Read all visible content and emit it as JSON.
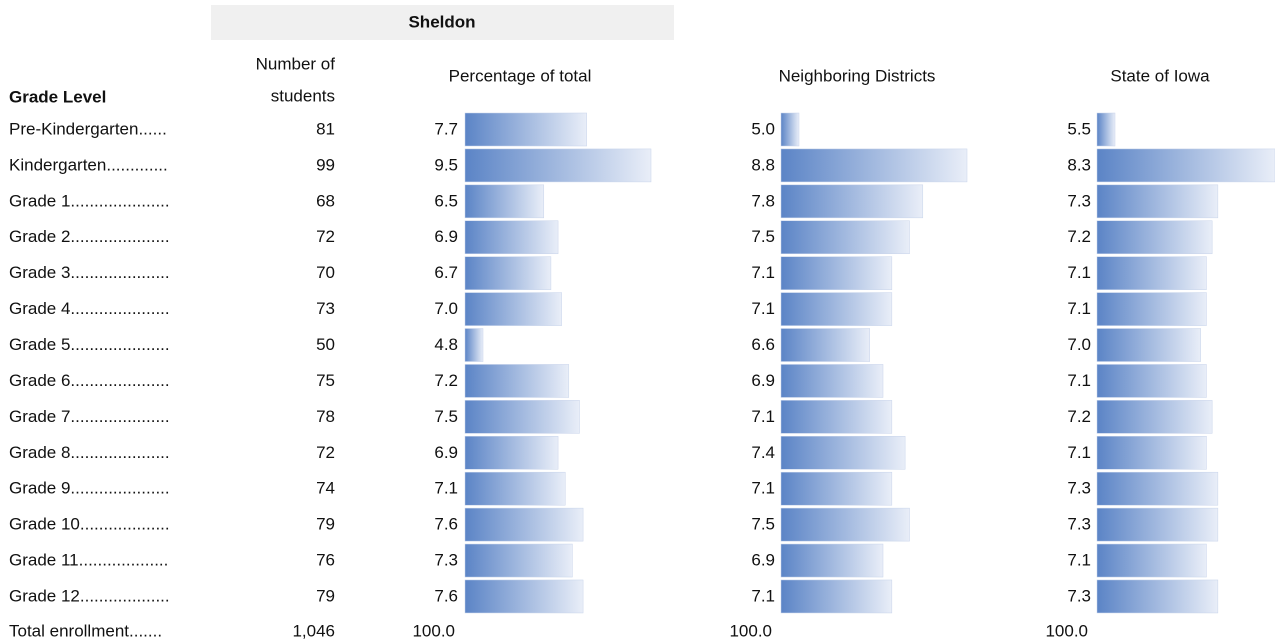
{
  "header": {
    "group": "Sheldon",
    "grade_level": "Grade Level",
    "number": [
      "Number of",
      "students"
    ],
    "percentage": "Percentage of total",
    "neighbors": "Neighboring Districts",
    "state": "State of Iowa"
  },
  "table": {
    "rows": [
      [
        "Pre-Kindergarten......",
        "81",
        "7.7",
        "5.0",
        "5.5"
      ],
      [
        "Kindergarten.............",
        "99",
        "9.5",
        "8.8",
        "8.3"
      ],
      [
        "Grade 1.....................",
        "68",
        "6.5",
        "7.8",
        "7.3"
      ],
      [
        "Grade 2.....................",
        "72",
        "6.9",
        "7.5",
        "7.2"
      ],
      [
        "Grade 3.....................",
        "70",
        "6.7",
        "7.1",
        "7.1"
      ],
      [
        "Grade 4.....................",
        "73",
        "7.0",
        "7.1",
        "7.1"
      ],
      [
        "Grade 5.....................",
        "50",
        "4.8",
        "6.6",
        "7.0"
      ],
      [
        "Grade 6.....................",
        "75",
        "7.2",
        "6.9",
        "7.1"
      ],
      [
        "Grade 7.....................",
        "78",
        "7.5",
        "7.1",
        "7.2"
      ],
      [
        "Grade 8.....................",
        "72",
        "6.9",
        "7.4",
        "7.1"
      ],
      [
        "Grade 9.....................",
        "74",
        "7.1",
        "7.1",
        "7.3"
      ],
      [
        "Grade 10...................",
        "79",
        "7.6",
        "7.5",
        "7.3"
      ],
      [
        "Grade 11...................",
        "76",
        "7.3",
        "6.9",
        "7.1"
      ],
      [
        "Grade 12...................",
        "79",
        "7.6",
        "7.1",
        "7.3"
      ]
    ],
    "total": [
      "Total enrollment.......",
      "1,046",
      "100.0",
      "100.0",
      "100.0"
    ]
  }
}
